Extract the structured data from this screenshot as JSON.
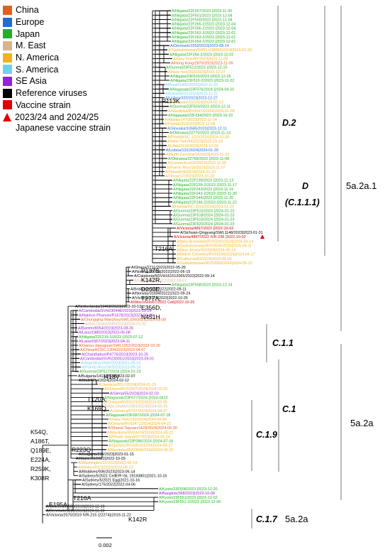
{
  "legend": {
    "items": [
      {
        "label": "China",
        "color": "#e4601a"
      },
      {
        "label": "Europe",
        "color": "#1f6fd0"
      },
      {
        "label": "Japan",
        "color": "#22b022"
      },
      {
        "label": "M. East",
        "color": "#d8b488"
      },
      {
        "label": "N. America",
        "color": "#f2b21c"
      },
      {
        "label": "S. America",
        "color": "#6fd0ee"
      },
      {
        "label": "SE Asia",
        "color": "#9a1fd6"
      },
      {
        "label": "Reference viruses",
        "color": "#000000"
      },
      {
        "label": "Vaccine strain",
        "color": "#e00000"
      }
    ],
    "triangle_label": "2023/24 and 2024/25",
    "triangle_label_2": "Japanese vaccine strain",
    "triangle_color": "#e00000"
  },
  "scale_label": "0.002",
  "mutations": [
    {
      "id": "r113k",
      "text": "R113K"
    },
    {
      "id": "t216a",
      "text": "T216A"
    },
    {
      "id": "p137s",
      "text": "P137S,"
    },
    {
      "id": "k142r",
      "text": "K142R,"
    },
    {
      "id": "d260e",
      "text": "D260E,"
    },
    {
      "id": "t277a",
      "text": "T277A,"
    },
    {
      "id": "e356d",
      "text": "E356D,"
    },
    {
      "id": "n451h",
      "text": "N451H"
    },
    {
      "id": "i418v",
      "text": "I418V"
    },
    {
      "id": "t120a",
      "text": "T120A,"
    },
    {
      "id": "k169q",
      "text": "K169Q"
    },
    {
      "id": "k54q",
      "text": "K54Q,"
    },
    {
      "id": "a186t",
      "text": "A186T,"
    },
    {
      "id": "q189e",
      "text": "Q189E,"
    },
    {
      "id": "e224a",
      "text": "E224A,"
    },
    {
      "id": "r259k",
      "text": "R259K,"
    },
    {
      "id": "k308r",
      "text": "K308R"
    },
    {
      "id": "r223q",
      "text": "R223Q"
    },
    {
      "id": "e195a",
      "text": "E195A"
    },
    {
      "id": "t216a2",
      "text": "T216A"
    },
    {
      "id": "k142r2",
      "text": "K142R"
    }
  ],
  "clades": [
    {
      "id": "d2",
      "text": "D.2"
    },
    {
      "id": "d",
      "text": "D"
    },
    {
      "id": "c1111",
      "text": "(C.1.1.1)"
    },
    {
      "id": "c11",
      "text": "C.1.1"
    },
    {
      "id": "c1",
      "text": "C.1"
    },
    {
      "id": "c19",
      "text": "C.1.9"
    },
    {
      "id": "c17",
      "text": "C.1.7"
    }
  ],
  "subclades": [
    {
      "id": "a1",
      "text": "5a.2a.1"
    },
    {
      "id": "a",
      "text": "5a.2a"
    },
    {
      "id": "a_c17",
      "text": "5a.2a"
    }
  ],
  "taxa": [
    {
      "label": "A/Niigata/22F267/2023 |2023-11-30",
      "color": "#22b022"
    },
    {
      "label": "A/Niigata/22F501/2023 |2023-12-04",
      "color": "#22b022"
    },
    {
      "label": "A/Niigata/22F500/2023 |2023-12-04",
      "color": "#22b022"
    },
    {
      "label": "A/Niigata/22F265-2/2023 |2023-12-04",
      "color": "#22b022"
    },
    {
      "label": "A/Niigata/22F266-2/2023 |2023-12-04",
      "color": "#22b022"
    },
    {
      "label": "A/Niigata/22F262-2/2023 |2023-12-01",
      "color": "#22b022"
    },
    {
      "label": "A/Niigata/22F263-2/2023 |2023-12-01",
      "color": "#22b022"
    },
    {
      "label": "A/Niigata/22F264-2/2023 |2023-12-01",
      "color": "#22b022"
    },
    {
      "label": "A/Denmark/1559/2023|2023-08-14",
      "color": "#1f6fd0"
    },
    {
      "label": "A/Saskatchewan/SWFLU38892/2024|2024-02-29",
      "color": "#f2b21c"
    },
    {
      "label": "A/Niigata/22F264-2/2023 |2023-12-02",
      "color": "#22b022"
    },
    {
      "label": "A/New York/NY2023|2023-11-09",
      "color": "#f2b21c"
    },
    {
      "label": "A/Hong Kong/2870/2023|2023-11-09",
      "color": "#e4601a"
    },
    {
      "label": "A/Gunma/23F512/2023 |2023-12-15",
      "color": "#22b022"
    },
    {
      "label": "A/New York/202/2023|2023-12-27",
      "color": "#f2b21c"
    },
    {
      "label": "A/Niigata/23F510/2023 |2023-12-26",
      "color": "#22b022"
    },
    {
      "label": "A/Niigata/23F510-2/2023 |2023-12-22",
      "color": "#22b022"
    },
    {
      "label": "A/Brazil/1905/2023|2023-11-20",
      "color": "#6fd0ee"
    },
    {
      "label": "A/Nagasaki/23F076/2024 |2024-04-10",
      "color": "#22b022"
    },
    {
      "label": "A/Bahia/5031/2023|2023-11-21",
      "color": "#6fd0ee"
    },
    {
      "label": "A/Lisboa/320/2023|2023-12-27",
      "color": "#1f6fd0"
    },
    {
      "label": "A/Delaware/10/2024|2024-02-13",
      "color": "#f2b21c"
    },
    {
      "label": "A/Gunma/23F503/2023 |2023-12-11",
      "color": "#22b022"
    },
    {
      "label": "A/Manitoba/RV00473/2024|2024-01-09",
      "color": "#f2b21c"
    },
    {
      "label": "A/Nagasaki/22F234/2023 |2023-10-23",
      "color": "#22b022"
    },
    {
      "label": "A/Alaska/147/2023|2023-11-14",
      "color": "#f2b21c"
    },
    {
      "label": "A/Florida/25/2023|2023-12-08",
      "color": "#f2b21c"
    },
    {
      "label": "A/Slovakia/10585/2023|2023-12-11",
      "color": "#1f6fd0"
    },
    {
      "label": "A/Okinawa/22770/2023 |2023-11-14",
      "color": "#22b022"
    },
    {
      "label": "A/Florida/ISC-1110/2024|2024-01-30",
      "color": "#f2b21c"
    },
    {
      "label": "A/New York/84/2023|2023-10-19",
      "color": "#f2b21c"
    },
    {
      "label": "A/Utah/2115/2023|2023-12-02",
      "color": "#f2b21c"
    },
    {
      "label": "A/Lisboa/131/2024|2024-01-29",
      "color": "#1f6fd0"
    },
    {
      "label": "A/North Carolina/16/2023|2023-11-10",
      "color": "#f2b21c"
    },
    {
      "label": "A/Okinawa/22769/2023 |2023-11-08",
      "color": "#22b022"
    },
    {
      "label": "A/Connecticut/16/2023|2023-11-06",
      "color": "#f2b21c"
    },
    {
      "label": "A/Puerto Rico/16/2023|2023-11-07",
      "color": "#f2b21c"
    },
    {
      "label": "A/Hawaii/04/2024|2024-01-10",
      "color": "#f2b21c"
    },
    {
      "label": "A/Texas/17/2023|2023-10-23",
      "color": "#f2b21c"
    },
    {
      "label": "A/Niigata/22F239/2023 |2023-11-13",
      "color": "#22b022"
    },
    {
      "label": "A/Niigata/22F239-2/2023 |2023-11-17",
      "color": "#22b022"
    },
    {
      "label": "A/Niigata/22F243/2023 |2023-11-16",
      "color": "#22b022"
    },
    {
      "label": "A/Niigata/22F243-2/2023 |2023-11-20",
      "color": "#22b022"
    },
    {
      "label": "A/Niigata/22F244/2023 |2023-11-20",
      "color": "#22b022"
    },
    {
      "label": "A/Niigata/22F246-2/2023 |2023-11-22",
      "color": "#22b022"
    },
    {
      "label": "A/Hawaii/ISC-1013/2024|2024-01-20",
      "color": "#f2b21c"
    },
    {
      "label": "A/Gunma/23F515/2024 |2024-01-10",
      "color": "#22b022"
    },
    {
      "label": "A/Gunma/23F518/2024 |2024-01-23",
      "color": "#22b022"
    },
    {
      "label": "A/Gunma/23F519/2024 |2024-01-23",
      "color": "#22b022"
    },
    {
      "label": "A/Gunma/23F520/2024 |2024-01-23",
      "color": "#22b022"
    },
    {
      "label": "A/Victoria/4897/2022 |2022-10-02",
      "color": "#e00000"
    },
    {
      "label": "A/Sichuan-Qingyang/SWL1148/2023|2023-01-31",
      "color": "#000000"
    },
    {
      "label": "A/Victoria/4897/2022 IVR-238 |2022-10-02",
      "color": "#e00000",
      "marker": true
    },
    {
      "label": "A/New Brunswick/RV03262/2024|2024-03-14",
      "color": "#f2b21c"
    },
    {
      "label": "A/Saskatchewan/RV03500/2024|2024-04-11",
      "color": "#f2b21c"
    },
    {
      "label": "A/New Jersey/50/2024|2024-05-14",
      "color": "#f2b21c"
    },
    {
      "label": "A/British Columbia/RV03156/2024|2024-04-17",
      "color": "#f2b21c"
    },
    {
      "label": "A/California/63/2024|2024-05-02",
      "color": "#f2b21c"
    },
    {
      "label": "A/Saskatchewan/RV03589/2024|2024-05-13",
      "color": "#f2b21c"
    },
    {
      "label": "A/Ghana/2711/2022|2022-05-26",
      "color": "#000000"
    },
    {
      "label": "A/Norway/25089/2022|2022-06-15",
      "color": "#000000"
    },
    {
      "label": "A/Catalonia/NSVH161512065/2022|2022-09-14",
      "color": "#000000"
    },
    {
      "label": "A/Georgia/12/2022|2022-09-07",
      "color": "#d8b488"
    },
    {
      "label": "A/Niigata/23F508/2023 |2023-12-14",
      "color": "#22b022"
    },
    {
      "label": "A/Brisbane/792/2022|2022-09-11",
      "color": "#000000"
    },
    {
      "label": "A/Norway/31694/2022|2022-09-24",
      "color": "#000000"
    },
    {
      "label": "A/Victoria/5172/2022|2022-10-25",
      "color": "#000000"
    },
    {
      "label": "A/Wisconsin/67/2022 Cell|2022-10-25",
      "color": "#e00000"
    },
    {
      "label": "A/Netherlands/10468/2023|2023-10-13",
      "color": "#000000"
    },
    {
      "label": "A/Cambodia/SVH230448/2023|2023-10-24",
      "color": "#9a1fd6"
    },
    {
      "label": "A/Nakhon Phanom/P1678/2023|2023-04-28",
      "color": "#9a1fd6"
    },
    {
      "label": "A/Chongqing-Wanzhou/SWL339/2023|2023-03-08",
      "color": "#e4601a"
    },
    {
      "label": "A/Abu Dhabi/5580/2024|2024-01-02",
      "color": "#d8b488"
    },
    {
      "label": "A/Banten/8054/2023|2023-08-26",
      "color": "#9a1fd6"
    },
    {
      "label": "A/Laos/1980/2023|2023-05-08",
      "color": "#9a1fd6"
    },
    {
      "label": "A/Niigata/22F219-2/2023 |2023-07-12",
      "color": "#22b022"
    },
    {
      "label": "A/Laos/1567/2023|2023-04-11",
      "color": "#9a1fd6"
    },
    {
      "label": "A/Gansu-Jiayuguan/SWL1352/2023|2023-03-20",
      "color": "#e4601a"
    },
    {
      "label": "A/China/HCDC-1304/2023|2023-04-07",
      "color": "#e4601a"
    },
    {
      "label": "A/Chanthaburi/P4776/2023|2023-10-25",
      "color": "#9a1fd6"
    },
    {
      "label": "A/Cambodia/ISVR230051/2023|2023-09-01",
      "color": "#9a1fd6"
    },
    {
      "label": "A/Argentina/3940/2023|2023-09-16",
      "color": "#6fd0ee"
    },
    {
      "label": "A/Puerto Rico/24/2023|2023-09-18",
      "color": "#6fd0ee"
    },
    {
      "label": "A/Gunma/23F517/2024 |2024-01-23",
      "color": "#22b022"
    },
    {
      "label": "A/Bulgaria/1413/2023|2023-02-07",
      "color": "#000000"
    },
    {
      "label": "A/Mali/4014/2024|2024-02-12",
      "color": "#000000"
    },
    {
      "label": "A/Jamaica/0017/2024|2024-01-23",
      "color": "#f2b21c"
    },
    {
      "label": "A/Ontario/RV03267/2024|2024-03-20",
      "color": "#f2b21c"
    },
    {
      "label": "A/Siena/55/2024|2024-02-03",
      "color": "#9a1fd6"
    },
    {
      "label": "A/Nagasaki/23F077/2024 |2024-0410",
      "color": "#22b022"
    },
    {
      "label": "A/Ontario/RV03119/2024|2024-03-26",
      "color": "#f2b21c"
    },
    {
      "label": "A/Abu Dhabi/10081/2024|2024-05-26",
      "color": "#d8b488"
    },
    {
      "label": "A/Jamaica/0737/2024|2024-04-27",
      "color": "#f2b21c"
    },
    {
      "label": "A/Nagasaki/23F087/2024 |2024-07-18",
      "color": "#22b022"
    },
    {
      "label": "A/New York/132/2024|2024-04-08",
      "color": "#f2b21c"
    },
    {
      "label": "A/Ontario/RV03471/2024|2024-04-22",
      "color": "#f2b21c"
    },
    {
      "label": "A/Shanxi-Taiyuan/1629/2024|2024-05-30",
      "color": "#e4601a"
    },
    {
      "label": "A/Manitoba/RV03474/2024|2024-05-22",
      "color": "#f2b21c"
    },
    {
      "label": "A/Rhode Island/47/2024|2024-05-16",
      "color": "#f2b21c"
    },
    {
      "label": "A/Nagasaki/23F086/2024 |2024-07-16",
      "color": "#22b022"
    },
    {
      "label": "A/Quebec/RV03616/2024|2024-04-27",
      "color": "#f2b21c"
    },
    {
      "label": "A/Manitoba/RV03606/2024|2024-05-25",
      "color": "#f2b21c"
    },
    {
      "label": "A/Bulgaria/234/2023|2023-01-15",
      "color": "#000000"
    },
    {
      "label": "A/Maine/10/2022|2022-10-29",
      "color": "#000000"
    },
    {
      "label": "A/Washington/22/2023|2023-02-14",
      "color": "#f2b21c"
    },
    {
      "label": "A/Mexico/9113/2023|2023-09-23",
      "color": "#f2b21c"
    },
    {
      "label": "A/Maldives/936/2023|2023-06-14",
      "color": "#000000"
    },
    {
      "label": "A/Sydney/5/2021 CellEPI ISL 19193801|2021-10-16",
      "color": "#000000"
    },
    {
      "label": "A/Sydney/5/2021 Egg|2021-10-16",
      "color": "#000000"
    },
    {
      "label": "A/Sydney/175/2022|2022-04-06",
      "color": "#000000"
    },
    {
      "label": "A/Kyoto/23F508/2023 |2023-12-20",
      "color": "#22b022"
    },
    {
      "label": "A/Bangkok/368/2023|2023-10-08",
      "color": "#9a1fd6"
    },
    {
      "label": "A/Kyoto/23F551/2023 |2023-12-02",
      "color": "#22b022"
    },
    {
      "label": "A/Kyoto/23F551-2/2023 |2023-12-06",
      "color": "#22b022"
    },
    {
      "label": "A/Wisconsin/588/2019|2019-12-19",
      "color": "#000000"
    },
    {
      "label": "A/Denmark/3280/2019|2019-11-10",
      "color": "#000000"
    },
    {
      "label": "A/Victoria/2570/2019 IVR-215 (22274)|2019-11-22",
      "color": "#000000"
    }
  ]
}
